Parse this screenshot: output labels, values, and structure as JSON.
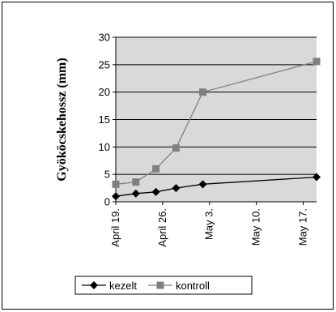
{
  "chart_data": {
    "type": "line",
    "ylabel": "Gyököcskehossz (mm)",
    "xlabel": "",
    "title": "",
    "ylim": [
      0,
      30
    ],
    "yticks": [
      0,
      5,
      10,
      15,
      20,
      25,
      30
    ],
    "grid": true,
    "legend_position": "bottom",
    "x_axis": {
      "start": "April 19.",
      "end": "May 19.",
      "tick_labels": [
        "April 19.",
        "April 26.",
        "May 3.",
        "May 10.",
        "May 17."
      ],
      "tick_days": [
        0,
        7,
        14,
        21,
        28
      ],
      "last_day": 30
    },
    "plot_background": "#d9d9d9",
    "series": [
      {
        "name": "kezelt",
        "marker": "diamond",
        "color": "#000000",
        "x": [
          0,
          3,
          6,
          9,
          13,
          30
        ],
        "values": [
          1,
          1.5,
          1.8,
          2.5,
          3.2,
          4.5
        ]
      },
      {
        "name": "kontroll",
        "marker": "square",
        "color": "#808080",
        "x": [
          0,
          3,
          6,
          9,
          13,
          30
        ],
        "values": [
          3.2,
          3.6,
          6,
          9.8,
          20,
          25.6
        ]
      }
    ]
  }
}
